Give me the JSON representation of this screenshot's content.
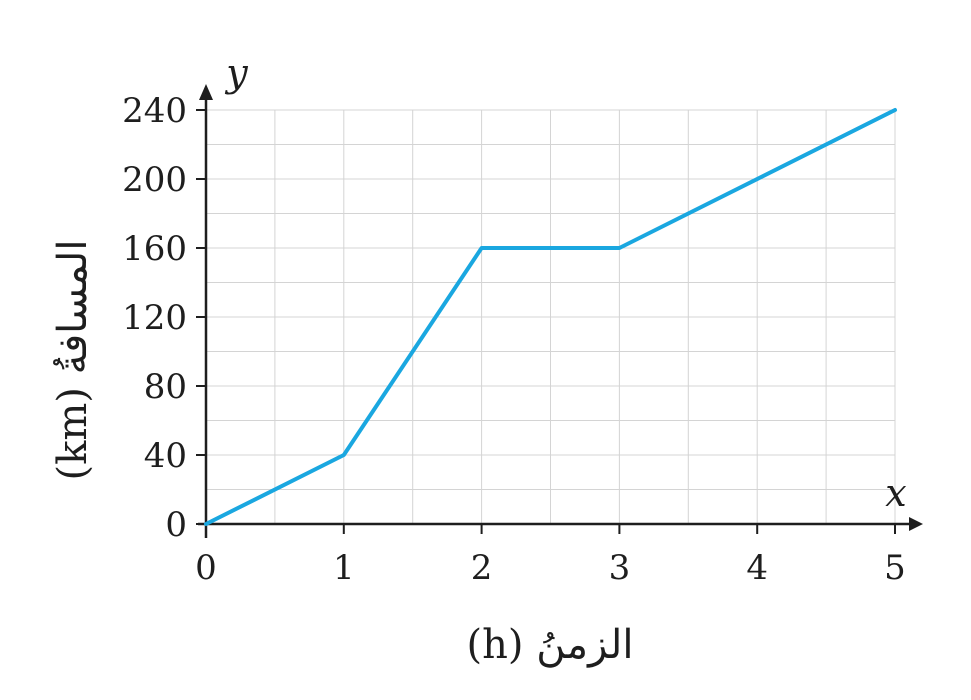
{
  "chart_data": {
    "type": "line",
    "x": [
      0,
      1,
      2,
      3,
      5
    ],
    "series": [
      {
        "values": [
          0,
          40,
          160,
          160,
          240
        ]
      }
    ],
    "xlabel": "الزمنُ (h)",
    "ylabel": "المسافةُ (km)",
    "x_axis_symbol": "x",
    "y_axis_symbol": "y",
    "x_ticks": [
      "0",
      "1",
      "2",
      "3",
      "4",
      "5"
    ],
    "y_ticks": [
      "0",
      "40",
      "80",
      "120",
      "160",
      "200",
      "240"
    ],
    "xlim": [
      0,
      5
    ],
    "ylim": [
      0,
      240
    ],
    "grid": true,
    "minor_grid": true,
    "line_color": "#1aa7e0",
    "grid_color": "#d4d4d4",
    "axis_color": "#1e1e1e"
  }
}
